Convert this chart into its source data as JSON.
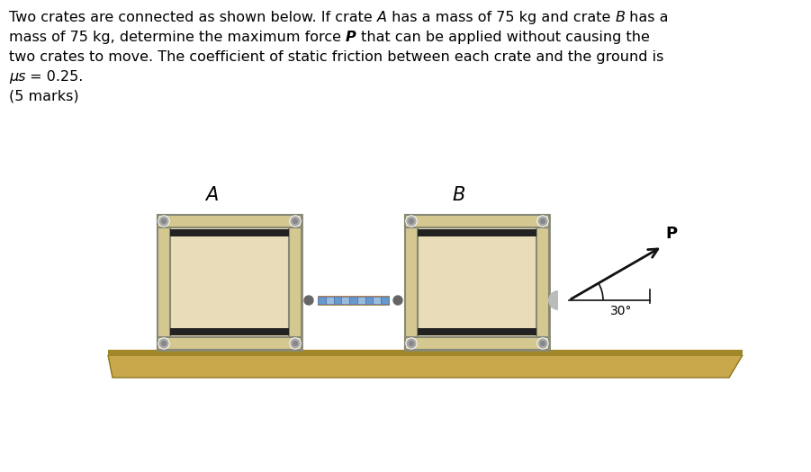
{
  "bg_color": "#ffffff",
  "ground_color": "#c8a84b",
  "ground_edge": "#8B7520",
  "crate_fill": "#e8ddb8",
  "crate_border": "#888877",
  "crate_frame": "#999988",
  "crate_stripe": "#222222",
  "bolt_outer": "#aaaaaa",
  "bolt_inner": "#888888",
  "rope_tan": "#c8a870",
  "rope_blue": "#6699cc",
  "rope_blue2": "#99bbdd",
  "hook_color": "#aaaaaa",
  "arrow_color": "#111111",
  "label_A": "A",
  "label_B": "B",
  "label_P": "P",
  "angle_label": "30°",
  "figsize": [
    9.01,
    5.25
  ],
  "dpi": 100,
  "line1_normal1": "Two crates are connected as shown below. If crate ",
  "line1_italic1": "A",
  "line1_normal2": " has a mass of 75 kg and crate ",
  "line1_italic2": "B",
  "line1_normal3": " has a",
  "line2_normal1": "mass of 75 kg, determine the maximum force ",
  "line2_bold1": "P",
  "line2_normal2": " that can be applied without causing the",
  "line3": "two crates to move. The coefficient of static friction between each crate and the ground is",
  "line4_italic": "μs",
  "line4_normal": " = 0.25.",
  "line5": "(5 marks)"
}
